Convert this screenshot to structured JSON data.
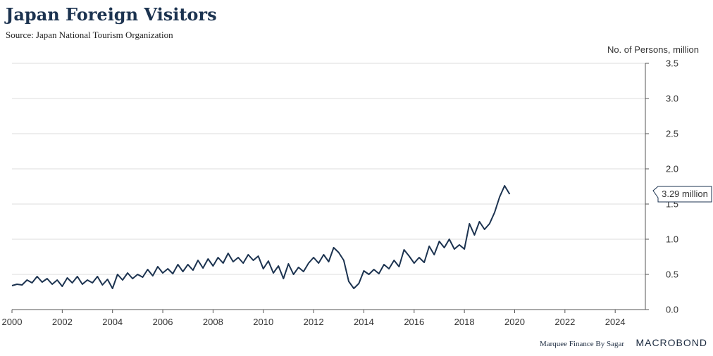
{
  "chart_data": {
    "type": "line",
    "title": "Japan Foreign Visitors",
    "subtitle": "Source: Japan National Tourism Organization",
    "ylabel": "No. of Persons, million",
    "ylim": [
      0,
      3.5
    ],
    "yticks": [
      "0.0",
      "0.5",
      "1.0",
      "1.5",
      "2.0",
      "2.5",
      "3.0",
      "3.5"
    ],
    "xlim": [
      2000,
      2025.2
    ],
    "xticks": [
      "2000",
      "2002",
      "2004",
      "2006",
      "2008",
      "2010",
      "2012",
      "2014",
      "2016",
      "2018",
      "2020",
      "2022",
      "2024"
    ],
    "grid": true,
    "callout": "3.29 million",
    "series": [
      {
        "color": "#1c3350",
        "points": [
          [
            2000.0,
            0.34
          ],
          [
            2000.2,
            0.36
          ],
          [
            2000.4,
            0.35
          ],
          [
            2000.6,
            0.42
          ],
          [
            2000.8,
            0.38
          ],
          [
            2001.0,
            0.47
          ],
          [
            2001.2,
            0.39
          ],
          [
            2001.4,
            0.44
          ],
          [
            2001.6,
            0.36
          ],
          [
            2001.8,
            0.42
          ],
          [
            2002.0,
            0.33
          ],
          [
            2002.2,
            0.45
          ],
          [
            2002.4,
            0.38
          ],
          [
            2002.6,
            0.47
          ],
          [
            2002.8,
            0.36
          ],
          [
            2003.0,
            0.42
          ],
          [
            2003.2,
            0.38
          ],
          [
            2003.4,
            0.47
          ],
          [
            2003.6,
            0.35
          ],
          [
            2003.8,
            0.43
          ],
          [
            2004.0,
            0.3
          ],
          [
            2004.2,
            0.5
          ],
          [
            2004.4,
            0.42
          ],
          [
            2004.6,
            0.52
          ],
          [
            2004.8,
            0.44
          ],
          [
            2005.0,
            0.5
          ],
          [
            2005.2,
            0.46
          ],
          [
            2005.4,
            0.57
          ],
          [
            2005.6,
            0.48
          ],
          [
            2005.8,
            0.61
          ],
          [
            2006.0,
            0.52
          ],
          [
            2006.2,
            0.58
          ],
          [
            2006.4,
            0.51
          ],
          [
            2006.6,
            0.64
          ],
          [
            2006.8,
            0.54
          ],
          [
            2007.0,
            0.64
          ],
          [
            2007.2,
            0.56
          ],
          [
            2007.4,
            0.7
          ],
          [
            2007.6,
            0.59
          ],
          [
            2007.8,
            0.72
          ],
          [
            2008.0,
            0.62
          ],
          [
            2008.2,
            0.74
          ],
          [
            2008.4,
            0.66
          ],
          [
            2008.6,
            0.8
          ],
          [
            2008.8,
            0.68
          ],
          [
            2009.0,
            0.74
          ],
          [
            2009.2,
            0.66
          ],
          [
            2009.4,
            0.78
          ],
          [
            2009.6,
            0.7
          ],
          [
            2009.8,
            0.76
          ],
          [
            2010.0,
            0.58
          ],
          [
            2010.2,
            0.69
          ],
          [
            2010.4,
            0.52
          ],
          [
            2010.6,
            0.62
          ],
          [
            2010.8,
            0.44
          ],
          [
            2011.0,
            0.65
          ],
          [
            2011.2,
            0.5
          ],
          [
            2011.4,
            0.6
          ],
          [
            2011.6,
            0.54
          ],
          [
            2011.8,
            0.66
          ],
          [
            2012.0,
            0.74
          ],
          [
            2012.2,
            0.66
          ],
          [
            2012.4,
            0.78
          ],
          [
            2012.6,
            0.68
          ],
          [
            2012.8,
            0.88
          ],
          [
            2013.0,
            0.81
          ],
          [
            2013.2,
            0.7
          ],
          [
            2013.4,
            0.4
          ],
          [
            2013.6,
            0.3
          ],
          [
            2013.8,
            0.37
          ],
          [
            2014.0,
            0.55
          ],
          [
            2014.2,
            0.5
          ],
          [
            2014.4,
            0.57
          ],
          [
            2014.6,
            0.51
          ],
          [
            2014.8,
            0.64
          ],
          [
            2015.0,
            0.58
          ],
          [
            2015.2,
            0.7
          ],
          [
            2015.4,
            0.61
          ],
          [
            2015.6,
            0.85
          ],
          [
            2015.8,
            0.76
          ],
          [
            2016.0,
            0.66
          ],
          [
            2016.2,
            0.74
          ],
          [
            2016.4,
            0.67
          ],
          [
            2016.6,
            0.9
          ],
          [
            2016.8,
            0.78
          ],
          [
            2017.0,
            0.97
          ],
          [
            2017.2,
            0.88
          ],
          [
            2017.4,
            1.0
          ],
          [
            2017.6,
            0.86
          ],
          [
            2017.8,
            0.92
          ],
          [
            2018.0,
            0.86
          ],
          [
            2018.2,
            1.22
          ],
          [
            2018.4,
            1.06
          ],
          [
            2018.6,
            1.25
          ],
          [
            2018.8,
            1.14
          ],
          [
            2019.0,
            1.22
          ],
          [
            2019.2,
            1.38
          ],
          [
            2019.4,
            1.6
          ],
          [
            2019.6,
            1.76
          ],
          [
            2019.8,
            1.64
          ]
        ]
      }
    ]
  },
  "footer": {
    "credit": "Marquee Finance By Sagar",
    "brand": "MACROBOND"
  }
}
